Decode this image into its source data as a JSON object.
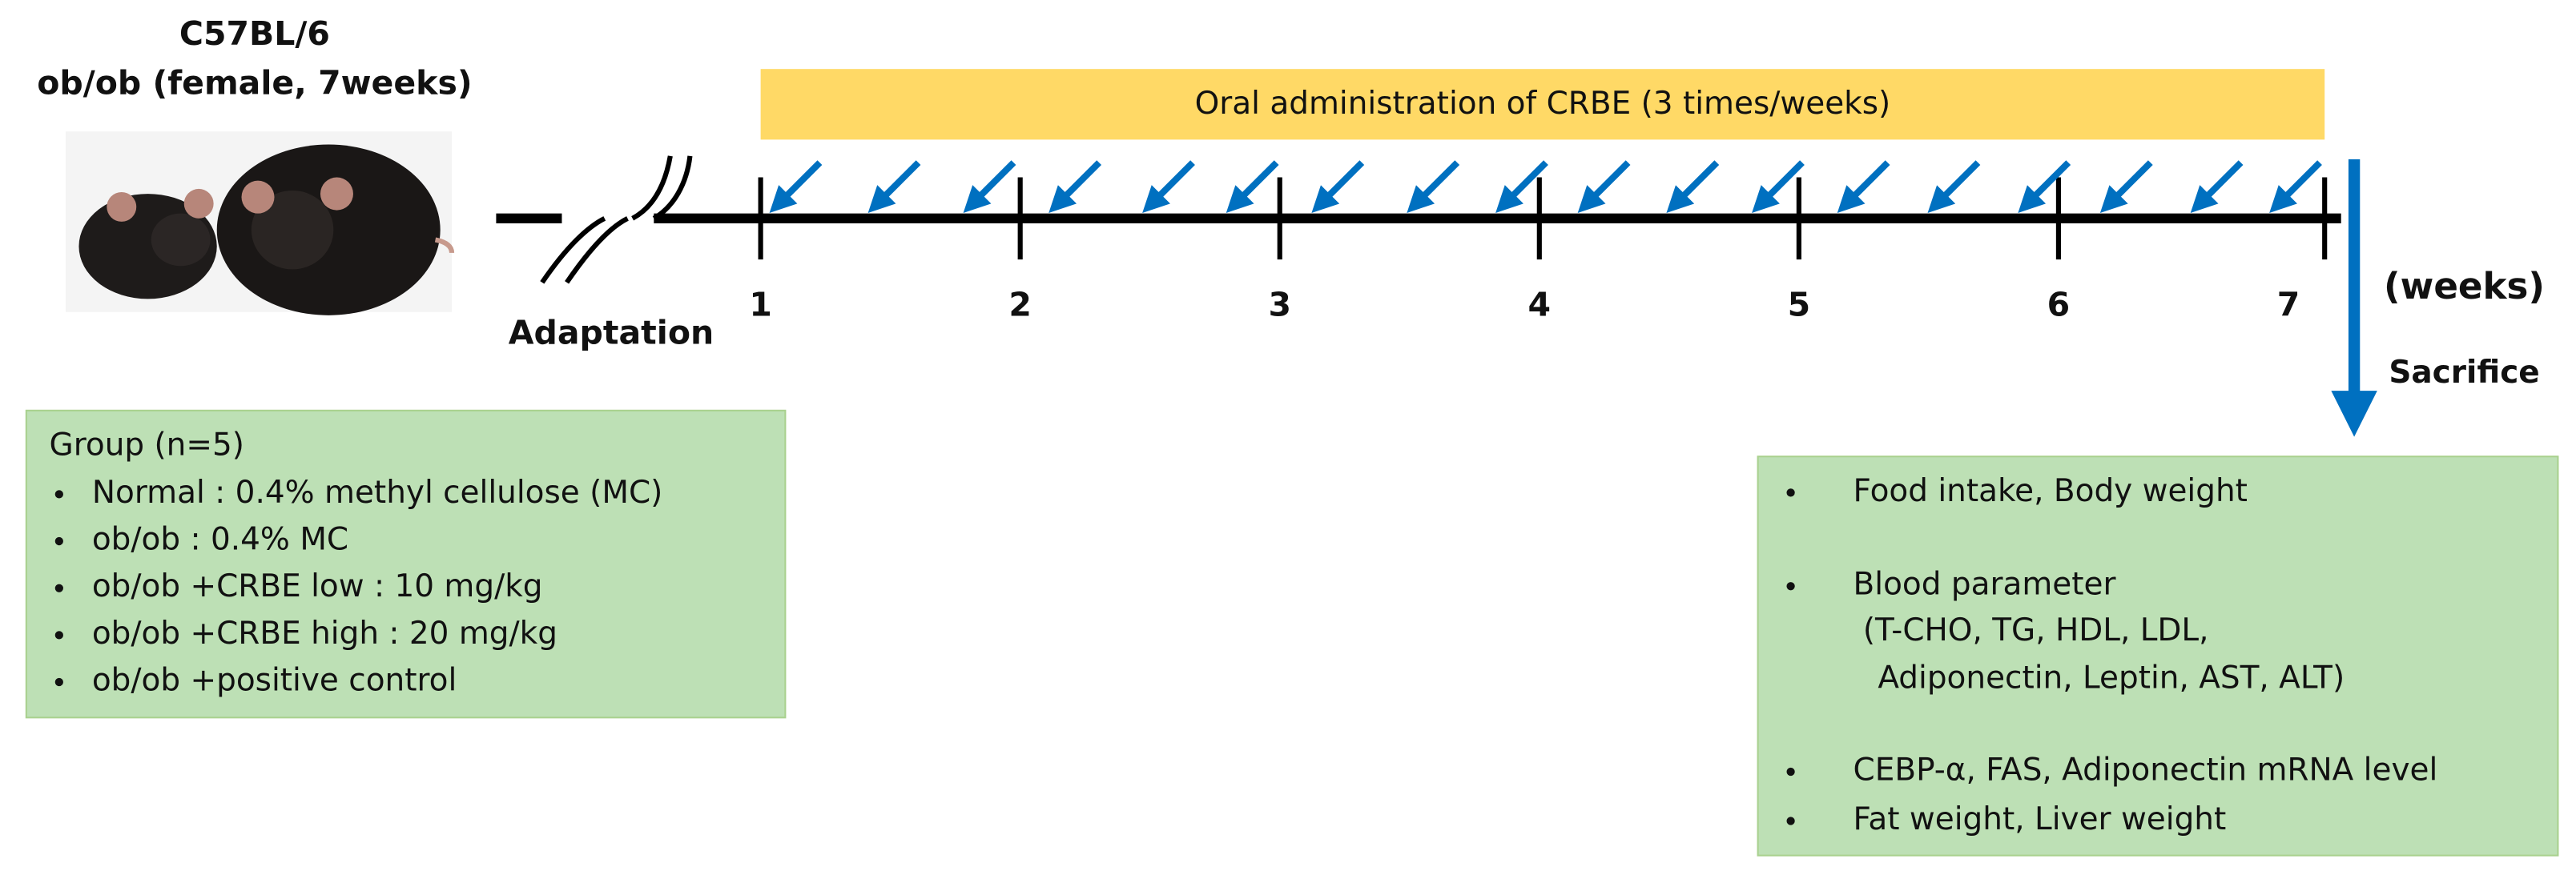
{
  "header": {
    "strain": "C57BL/6",
    "model": "ob/ob (female, 7weeks)"
  },
  "timeline": {
    "treatment": "Oral administration of CRBE (3 times/weeks)",
    "adaptation": "Adaptation",
    "weeks": [
      "1",
      "2",
      "3",
      "4",
      "5",
      "6",
      "7"
    ],
    "unit": "(weeks)",
    "endpoint": "Sacrifice"
  },
  "group": {
    "title": "Group (n=5)",
    "items": [
      "Normal : 0.4% methyl cellulose (MC)",
      "ob/ob :  0.4% MC",
      "ob/ob +CRBE low : 10 mg/kg",
      "ob/ob +CRBE high : 20 mg/kg",
      "ob/ob +positive control"
    ]
  },
  "outcomes": {
    "items": [
      "Food intake, Body weight",
      "Blood parameter",
      "CEBP-α, FAS, Adiponectin mRNA level",
      "Fat weight, Liver weight"
    ],
    "blood_parameter_details": [
      "(T-CHO, TG, HDL, LDL,",
      "Adiponectin, Leptin, AST, ALT)"
    ]
  }
}
